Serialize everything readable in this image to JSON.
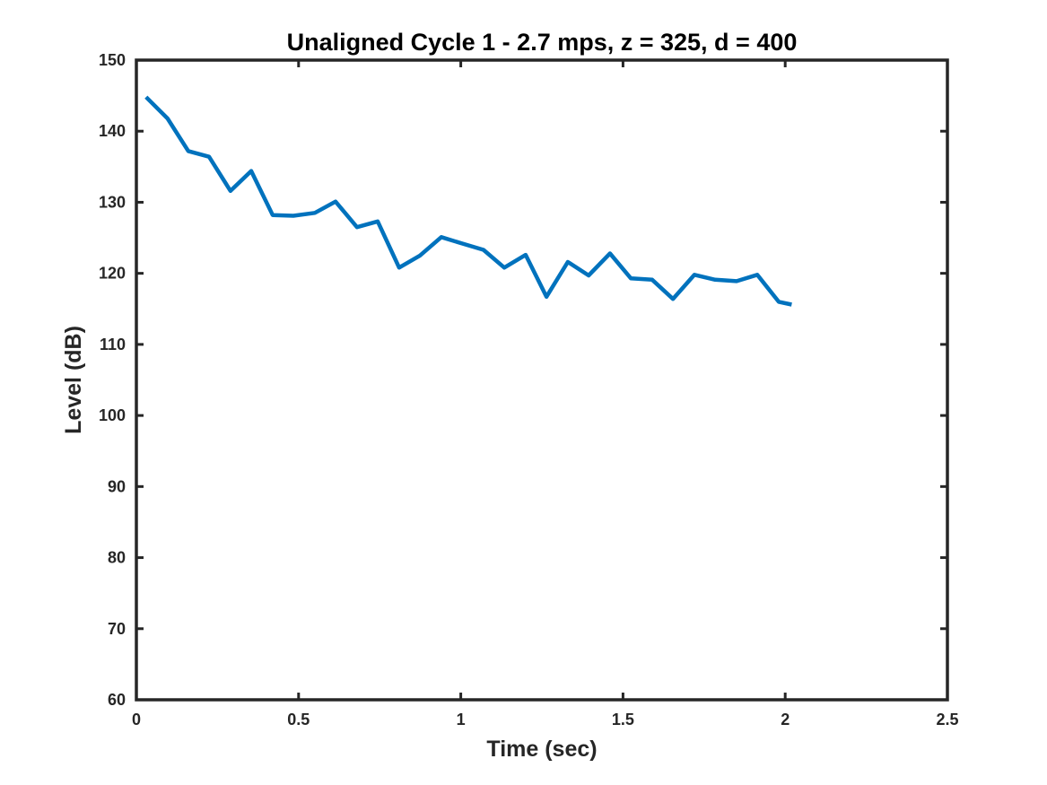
{
  "chart_data": {
    "type": "line",
    "title": "Unaligned Cycle 1 - 2.7 mps, z = 325, d = 400",
    "xlabel": "Time (sec)",
    "ylabel": "Level (dB)",
    "xlim": [
      0,
      2.5
    ],
    "ylim": [
      60,
      150
    ],
    "xticks": [
      0,
      0.5,
      1,
      1.5,
      2,
      2.5
    ],
    "xtick_labels": [
      "0",
      "0.5",
      "1",
      "1.5",
      "2",
      "2.5"
    ],
    "yticks": [
      60,
      70,
      80,
      90,
      100,
      110,
      120,
      130,
      140,
      150
    ],
    "ytick_labels": [
      "60",
      "70",
      "80",
      "90",
      "100",
      "110",
      "120",
      "130",
      "140",
      "150"
    ],
    "grid": false,
    "series": [
      {
        "color": "#0072BD",
        "x": [
          0.03,
          0.096,
          0.16,
          0.224,
          0.29,
          0.354,
          0.42,
          0.484,
          0.55,
          0.614,
          0.68,
          0.744,
          0.81,
          0.874,
          0.94,
          1.004,
          1.07,
          1.134,
          1.2,
          1.264,
          1.33,
          1.394,
          1.46,
          1.524,
          1.59,
          1.654,
          1.72,
          1.784,
          1.85,
          1.914,
          1.98,
          2.02
        ],
        "y": [
          144.8,
          141.8,
          137.2,
          136.4,
          131.6,
          134.4,
          128.2,
          128.1,
          128.5,
          130.1,
          126.5,
          127.3,
          120.8,
          122.5,
          125.1,
          124.2,
          123.3,
          120.8,
          122.6,
          116.7,
          121.6,
          119.7,
          122.8,
          119.3,
          119.1,
          116.4,
          119.8,
          119.1,
          118.9,
          119.8,
          116.0,
          115.6
        ]
      }
    ]
  }
}
